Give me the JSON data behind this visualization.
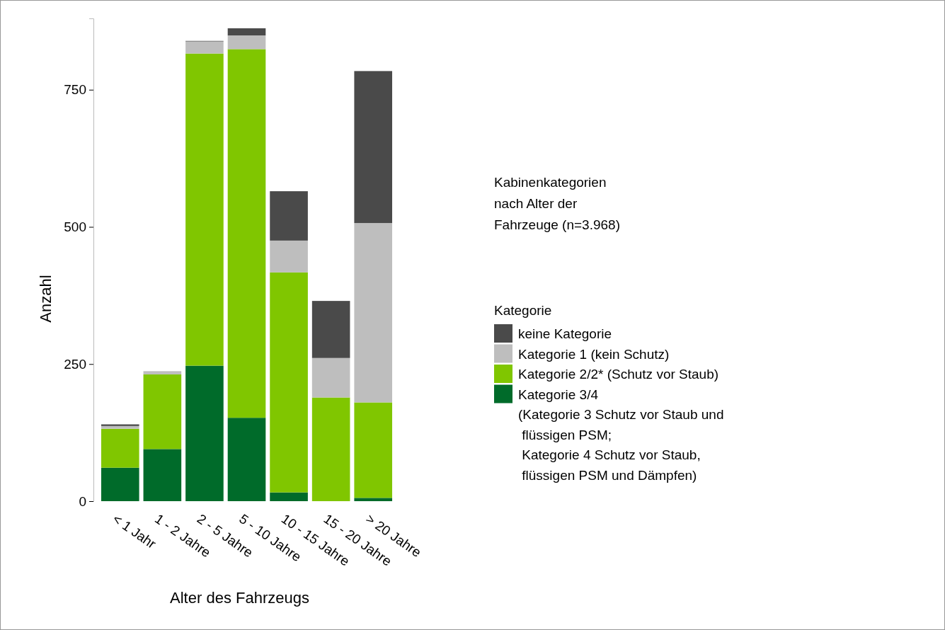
{
  "chart_data": {
    "type": "bar",
    "stacked": true,
    "title": "Kabinenkategorien\nnach Alter der\nFahrzeuge (n=3.968)",
    "xlabel": "Alter des Fahrzeugs",
    "ylabel": "Anzahl",
    "legend_title": "Kategorie",
    "categories": [
      "< 1 Jahr",
      "1 - 2 Jahre",
      "2 - 5 Jahre",
      "5 - 10 Jahre",
      "10 - 15 Jahre",
      "15 - 20 Jahre",
      "> 20 Jahre"
    ],
    "series": [
      {
        "name": "Kategorie 3/4\n(Kategorie 3 Schutz vor Staub und\n flüssigen PSM;\n Kategorie 4 Schutz vor Staub,\n flüssigen PSM und Dämpfen)",
        "color": "#006b2a",
        "values": [
          61,
          95,
          247,
          152,
          16,
          0,
          6
        ]
      },
      {
        "name": "Kategorie 2/2* (Schutz vor Staub)",
        "color": "#80c600",
        "values": [
          71,
          136,
          569,
          672,
          401,
          189,
          174
        ]
      },
      {
        "name": "Kategorie 1 (kein Schutz)",
        "color": "#bebebe",
        "values": [
          5,
          6,
          22,
          25,
          58,
          72,
          327
        ]
      },
      {
        "name": "keine Kategorie",
        "color": "#4a4a4a",
        "values": [
          3,
          0,
          1,
          13,
          90,
          104,
          277
        ]
      }
    ],
    "ylim": [
      0,
      880
    ],
    "yticks": [
      0,
      250,
      500,
      750
    ],
    "grid": false,
    "legend": "right"
  }
}
